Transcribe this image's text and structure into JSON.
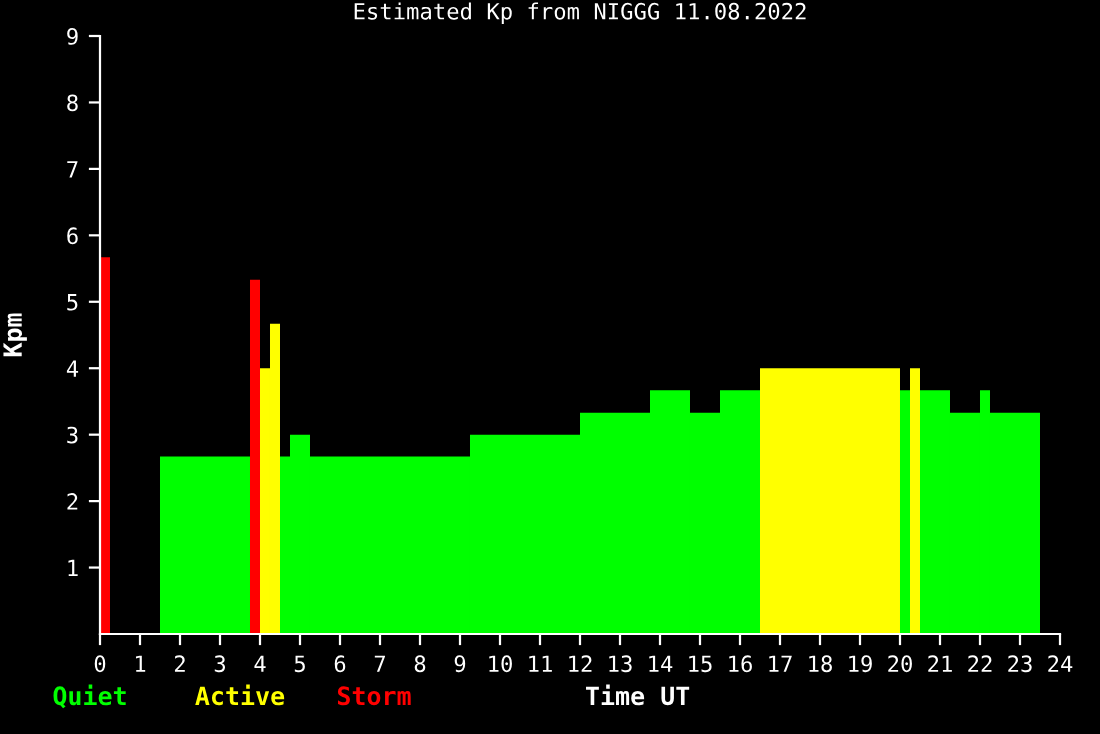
{
  "chart_data": {
    "type": "histogram",
    "title": "Estimated Kp from NIGGG 11.08.2022",
    "xlabel": "Time UT",
    "ylabel": "Kpm",
    "bins": [
      0,
      0.25,
      1.5,
      3.75,
      4.0,
      4.25,
      4.5,
      4.75,
      5.25,
      9.25,
      12.0,
      13.75,
      14.75,
      15.5,
      16.5,
      20.0,
      20.25,
      20.5,
      21.25,
      22.0,
      22.25,
      23.5
    ],
    "series": [
      {
        "name": "Quiet",
        "color": "#00ff00",
        "values": [
          null,
          null,
          2.67,
          null,
          null,
          null,
          2.67,
          3.0,
          2.67,
          3.0,
          3.33,
          3.67,
          3.33,
          3.67,
          null,
          3.67,
          null,
          3.67,
          3.33,
          3.67,
          3.33
        ]
      },
      {
        "name": "Active",
        "color": "#ffff00",
        "values": [
          null,
          null,
          null,
          null,
          4.0,
          4.67,
          null,
          null,
          null,
          null,
          null,
          null,
          null,
          null,
          4.0,
          null,
          4.0,
          null,
          null,
          null,
          null
        ]
      },
      {
        "name": "Storm",
        "color": "#ff0000",
        "values": [
          5.67,
          null,
          null,
          5.33,
          null,
          null,
          null,
          null,
          null,
          null,
          null,
          null,
          null,
          null,
          null,
          null,
          null,
          null,
          null,
          null,
          null
        ]
      }
    ],
    "xlim": [
      0,
      24
    ],
    "xticks": [
      0,
      1,
      2,
      3,
      4,
      5,
      6,
      7,
      8,
      9,
      10,
      11,
      12,
      13,
      14,
      15,
      16,
      17,
      18,
      19,
      20,
      21,
      22,
      23,
      24
    ],
    "ylim": [
      0,
      9
    ],
    "yticks": [
      1,
      2,
      3,
      4,
      5,
      6,
      7,
      8,
      9
    ],
    "legend": "bottom left",
    "grid": false
  }
}
